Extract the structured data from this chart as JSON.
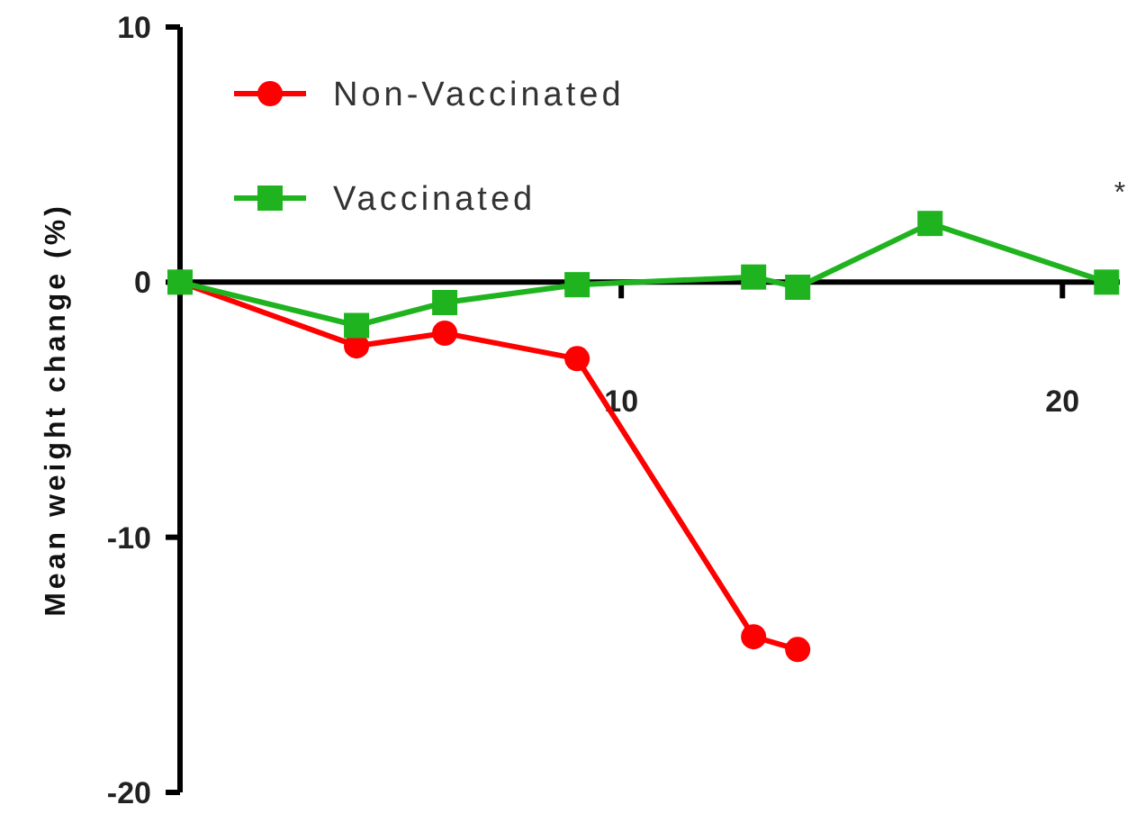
{
  "chart_data": {
    "type": "line",
    "ylabel": "Mean weight change (%)",
    "x": [
      0,
      4,
      6,
      9,
      13,
      14,
      17,
      21
    ],
    "series": [
      {
        "name": "Non-Vaccinated",
        "color": "#ff0000",
        "marker": "circle",
        "values": [
          0,
          -2.5,
          -2.0,
          -3.0,
          -13.9,
          -14.4,
          null,
          null
        ]
      },
      {
        "name": "Vaccinated",
        "color": "#1fb41f",
        "marker": "square",
        "values": [
          0,
          -1.7,
          -0.8,
          -0.1,
          0.2,
          -0.2,
          2.3,
          0
        ]
      }
    ],
    "xlim": [
      0,
      21.3
    ],
    "xticks": [
      10,
      20
    ],
    "ylim": [
      -20,
      10
    ],
    "yticks": [
      -20,
      -10,
      0,
      10
    ],
    "legend": "top left",
    "annotations": [
      "*"
    ]
  }
}
